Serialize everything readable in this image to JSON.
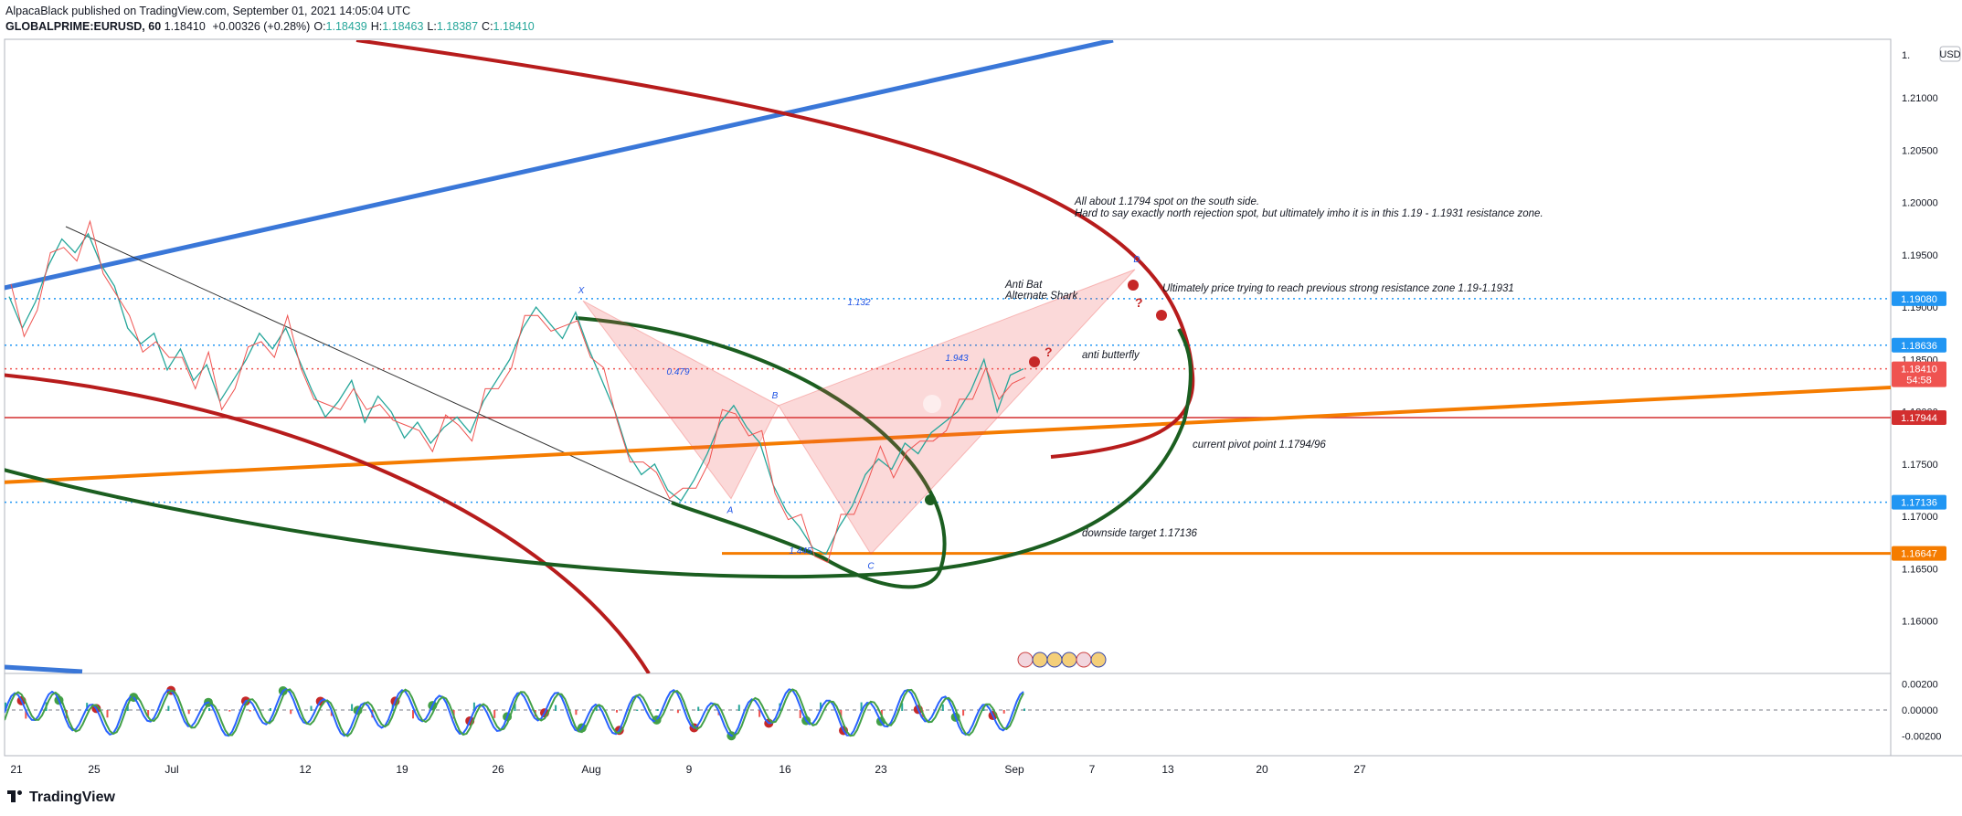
{
  "header": {
    "line1": "AlpacaBlack published on TradingView.com, September 01, 2021 14:05:04 UTC",
    "symbol": "GLOBALPRIME:EURUSD, 60",
    "last": "1.18410",
    "change": "+0.00326 (+0.28%)",
    "o_label": "O:",
    "o": "1.18439",
    "h_label": "H:",
    "h": "1.18463",
    "l_label": "L:",
    "l": "1.18387",
    "c_label": "C:",
    "c": "1.18410"
  },
  "footer": {
    "logo": "TradingView"
  },
  "chart_data": {
    "type": "line",
    "currency_label": "USD",
    "y_tick_top_partial": "1.",
    "ylim": [
      1.155,
      1.2155
    ],
    "y_ticks": [
      "1.21000",
      "1.20500",
      "1.20000",
      "1.19500",
      "1.19000",
      "1.18500",
      "1.18000",
      "1.17500",
      "1.17000",
      "1.16500",
      "1.16000"
    ],
    "x_ticks": [
      "21",
      "25",
      "Jul",
      "12",
      "19",
      "26",
      "Aug",
      "9",
      "16",
      "23",
      "Sep",
      "7",
      "13",
      "20",
      "27"
    ],
    "price_labels": [
      {
        "value": "1.19080",
        "color": "#2196f3"
      },
      {
        "value": "1.18636",
        "color": "#2196f3"
      },
      {
        "value": "1.18410",
        "color": "#ef5350",
        "sub": "54:58"
      },
      {
        "value": "1.17944",
        "color": "#d32f2f"
      },
      {
        "value": "1.17136",
        "color": "#2196f3"
      },
      {
        "value": "1.16647",
        "color": "#f57c00"
      }
    ],
    "harmonic_points": [
      {
        "label": "X",
        "value": 1.1906
      },
      {
        "label": "A",
        "value": 1.1717
      },
      {
        "label": "B",
        "value": 1.1806
      },
      {
        "label": "C",
        "value": 1.1664
      },
      {
        "label": "D",
        "value": 1.1936
      }
    ],
    "ratios": [
      "1.132",
      "0.479",
      "1.445",
      "1.943"
    ],
    "annotations": {
      "note_line1": "All about 1.1794 spot on the south side.",
      "note_line2": "Hard to say exactly north rejection spot, but ultimately imho it is in this 1.19 - 1.1931 resistance zone.",
      "anti_bat": "Anti Bat",
      "alt_shark": "Alternate Shark",
      "resistance_note": "Ultimately price trying to reach previous strong resistance zone 1.19-1.1931",
      "anti_butterfly": "anti butterfly",
      "pivot": "current pivot point 1.1794/96",
      "downside": "downside target 1.17136",
      "question": "?"
    },
    "oscillator": {
      "ticks": [
        "0.00200",
        "0.00000",
        "-0.00200"
      ],
      "ylim": [
        -0.0035,
        0.0028
      ]
    },
    "series": [
      {
        "name": "EURUSD",
        "values": [
          [
            0,
            1.191
          ],
          [
            2,
            1.188
          ],
          [
            4,
            1.1905
          ],
          [
            6,
            1.194
          ],
          [
            8,
            1.1965
          ],
          [
            10,
            1.1952
          ],
          [
            12,
            1.197
          ],
          [
            14,
            1.194
          ],
          [
            16,
            1.192
          ],
          [
            18,
            1.188
          ],
          [
            20,
            1.1865
          ],
          [
            22,
            1.1875
          ],
          [
            24,
            1.184
          ],
          [
            26,
            1.186
          ],
          [
            28,
            1.183
          ],
          [
            30,
            1.1845
          ],
          [
            32,
            1.181
          ],
          [
            34,
            1.183
          ],
          [
            36,
            1.185
          ],
          [
            38,
            1.1875
          ],
          [
            40,
            1.186
          ],
          [
            42,
            1.188
          ],
          [
            44,
            1.185
          ],
          [
            46,
            1.182
          ],
          [
            48,
            1.1795
          ],
          [
            50,
            1.181
          ],
          [
            52,
            1.183
          ],
          [
            54,
            1.179
          ],
          [
            56,
            1.1815
          ],
          [
            58,
            1.18
          ],
          [
            60,
            1.1775
          ],
          [
            62,
            1.179
          ],
          [
            64,
            1.177
          ],
          [
            66,
            1.1785
          ],
          [
            68,
            1.1795
          ],
          [
            70,
            1.178
          ],
          [
            72,
            1.181
          ],
          [
            74,
            1.183
          ],
          [
            76,
            1.185
          ],
          [
            78,
            1.188
          ],
          [
            80,
            1.19
          ],
          [
            82,
            1.1885
          ],
          [
            84,
            1.187
          ],
          [
            86,
            1.1895
          ],
          [
            88,
            1.186
          ],
          [
            90,
            1.183
          ],
          [
            92,
            1.18
          ],
          [
            94,
            1.176
          ],
          [
            96,
            1.174
          ],
          [
            98,
            1.175
          ],
          [
            100,
            1.1725
          ],
          [
            102,
            1.1715
          ],
          [
            104,
            1.1735
          ],
          [
            106,
            1.176
          ],
          [
            108,
            1.179
          ],
          [
            110,
            1.1806
          ],
          [
            112,
            1.1785
          ],
          [
            114,
            1.177
          ],
          [
            116,
            1.173
          ],
          [
            118,
            1.1705
          ],
          [
            120,
            1.169
          ],
          [
            122,
            1.167
          ],
          [
            124,
            1.1664
          ],
          [
            126,
            1.169
          ],
          [
            128,
            1.171
          ],
          [
            130,
            1.174
          ],
          [
            132,
            1.1755
          ],
          [
            134,
            1.1745
          ],
          [
            136,
            1.177
          ],
          [
            138,
            1.176
          ],
          [
            140,
            1.178
          ],
          [
            142,
            1.179
          ],
          [
            144,
            1.18
          ],
          [
            146,
            1.182
          ],
          [
            148,
            1.185
          ],
          [
            150,
            1.18
          ],
          [
            152,
            1.1835
          ],
          [
            154,
            1.1841
          ]
        ]
      }
    ]
  }
}
